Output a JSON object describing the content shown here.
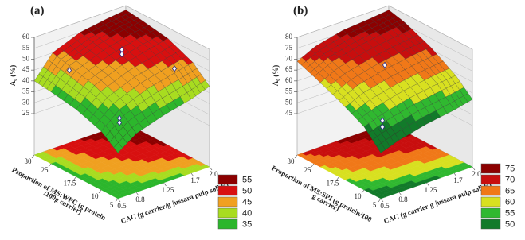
{
  "chart_data": [
    {
      "type": "surface",
      "title": "(a)",
      "z_label": "A₀ (%)",
      "x_label": "CAC (g carrier/g jussara pulp solids)",
      "y_label": [
        "Proportion of MS:WPC (g protein",
        "/100g carrier)"
      ],
      "x": [
        0.5,
        0.8,
        1.25,
        1.7,
        2
      ],
      "y": [
        5,
        10,
        17.5,
        25,
        30
      ],
      "z": [
        [
          27,
          33,
          37,
          39,
          40
        ],
        [
          33,
          40,
          45,
          48,
          50
        ],
        [
          37,
          45,
          50,
          53,
          55
        ],
        [
          40,
          48,
          53,
          56,
          57
        ],
        [
          43,
          50,
          55,
          57,
          58
        ]
      ],
      "points": [
        [
          1.25,
          17.5,
          57
        ],
        [
          1.25,
          17.5,
          55
        ],
        [
          0.8,
          10,
          36
        ],
        [
          0.8,
          10,
          34
        ],
        [
          1.7,
          10,
          50
        ],
        [
          0.8,
          25,
          46
        ]
      ],
      "xlim": [
        0.5,
        2
      ],
      "ylim": [
        5,
        30
      ],
      "zlim": [
        25,
        60
      ],
      "xticks": [
        0.5,
        0.8,
        1.25,
        1.7,
        {
          "value": 2,
          "label": "2.0"
        }
      ],
      "yticks": [
        5,
        10,
        17.5,
        25,
        30
      ],
      "zticks": [
        25,
        30,
        35,
        40,
        45,
        50,
        55,
        60
      ],
      "legend": [
        {
          "value": 55,
          "color": "#8c0000"
        },
        {
          "value": 50,
          "color": "#d81010"
        },
        {
          "value": 45,
          "color": "#f0a020"
        },
        {
          "value": 40,
          "color": "#a8dc20"
        },
        {
          "value": 35,
          "color": "#2cb62c"
        }
      ]
    },
    {
      "type": "surface",
      "title": "(b)",
      "z_label": "A₀ (%)",
      "x_label": "CAC (g carrier/g jussara pulp solids)",
      "y_label": [
        "Proportion of MS:SPI (g protein/100",
        "g carrier)"
      ],
      "x": [
        0.5,
        0.8,
        1.25,
        1.7,
        2
      ],
      "y": [
        5,
        10,
        17.5,
        25,
        30
      ],
      "z": [
        [
          47,
          55,
          61,
          66,
          69
        ],
        [
          50,
          58,
          65,
          70,
          73
        ],
        [
          53,
          61,
          68,
          73,
          76
        ],
        [
          55,
          63,
          70,
          75,
          77
        ],
        [
          57,
          64,
          71,
          76,
          78
        ]
      ],
      "points": [
        [
          1.25,
          17.5,
          70
        ],
        [
          0.8,
          10,
          55
        ],
        [
          0.8,
          10,
          52
        ]
      ],
      "xlim": [
        0.5,
        2
      ],
      "ylim": [
        5,
        30
      ],
      "zlim": [
        45,
        80
      ],
      "xticks": [
        0.5,
        0.8,
        1.25,
        1.7,
        {
          "value": 2,
          "label": "2.0"
        }
      ],
      "yticks": [
        5,
        10,
        17.5,
        25,
        30
      ],
      "zticks": [
        45,
        50,
        55,
        60,
        65,
        70,
        75,
        80
      ],
      "legend": [
        {
          "value": 75,
          "color": "#8c0000"
        },
        {
          "value": 70,
          "color": "#c80e0e"
        },
        {
          "value": 65,
          "color": "#f07818"
        },
        {
          "value": 60,
          "color": "#d8e020"
        },
        {
          "value": 55,
          "color": "#30b830"
        },
        {
          "value": 50,
          "color": "#127a2a"
        }
      ]
    }
  ]
}
